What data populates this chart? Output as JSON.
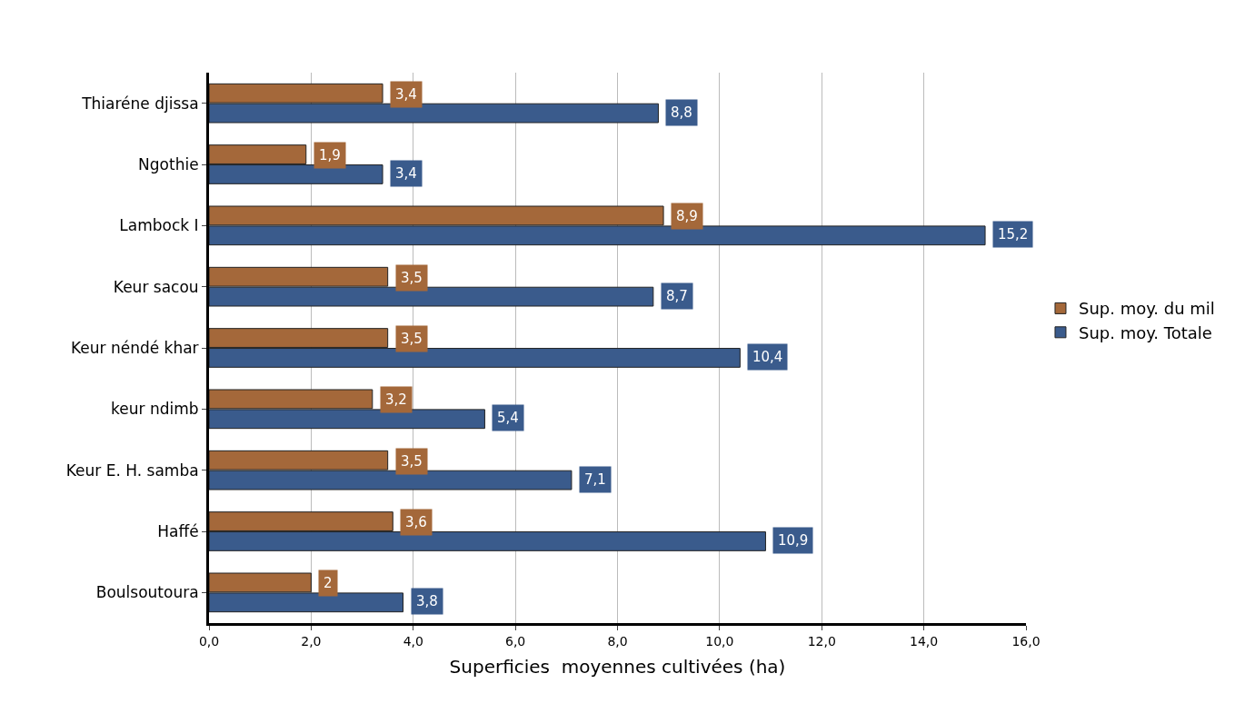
{
  "chart_data": {
    "type": "bar",
    "orientation": "horizontal",
    "xlabel": "Superficies  moyennes cultivées (ha)",
    "categories": [
      "Thiaréne djissa",
      "Ngothie",
      "Lambock I",
      "Keur sacou",
      "Keur néndé khar",
      "keur ndimb",
      "Keur E. H. samba",
      "Haffé",
      "Boulsoutoura"
    ],
    "series": [
      {
        "name": "Sup. moy. du mil",
        "color": "#a4683a",
        "values": [
          3.4,
          1.9,
          8.9,
          3.5,
          3.5,
          3.2,
          3.5,
          3.6,
          2
        ],
        "value_labels": [
          "3,4",
          "1,9",
          "8,9",
          "3,5",
          "3,5",
          "3,2",
          "3,5",
          "3,6",
          "2"
        ]
      },
      {
        "name": "Sup. moy. Totale",
        "color": "#3a5b8c",
        "values": [
          8.8,
          3.4,
          15.2,
          8.7,
          10.4,
          5.4,
          7.1,
          10.9,
          3.8
        ],
        "value_labels": [
          "8,8",
          "3,4",
          "15,2",
          "8,7",
          "10,4",
          "5,4",
          "7,1",
          "10,9",
          "3,8"
        ]
      }
    ],
    "xlim": [
      0,
      16
    ],
    "xticks": [
      {
        "value": 0,
        "label": "0,0"
      },
      {
        "value": 2,
        "label": "2,0"
      },
      {
        "value": 4,
        "label": "4,0"
      },
      {
        "value": 6,
        "label": "6,0"
      },
      {
        "value": 8,
        "label": "8,0"
      },
      {
        "value": 10,
        "label": "10,0"
      },
      {
        "value": 12,
        "label": "12,0"
      },
      {
        "value": 14,
        "label": "14,0"
      },
      {
        "value": 16,
        "label": "16,0"
      }
    ],
    "grid": "x",
    "legend": "right"
  }
}
